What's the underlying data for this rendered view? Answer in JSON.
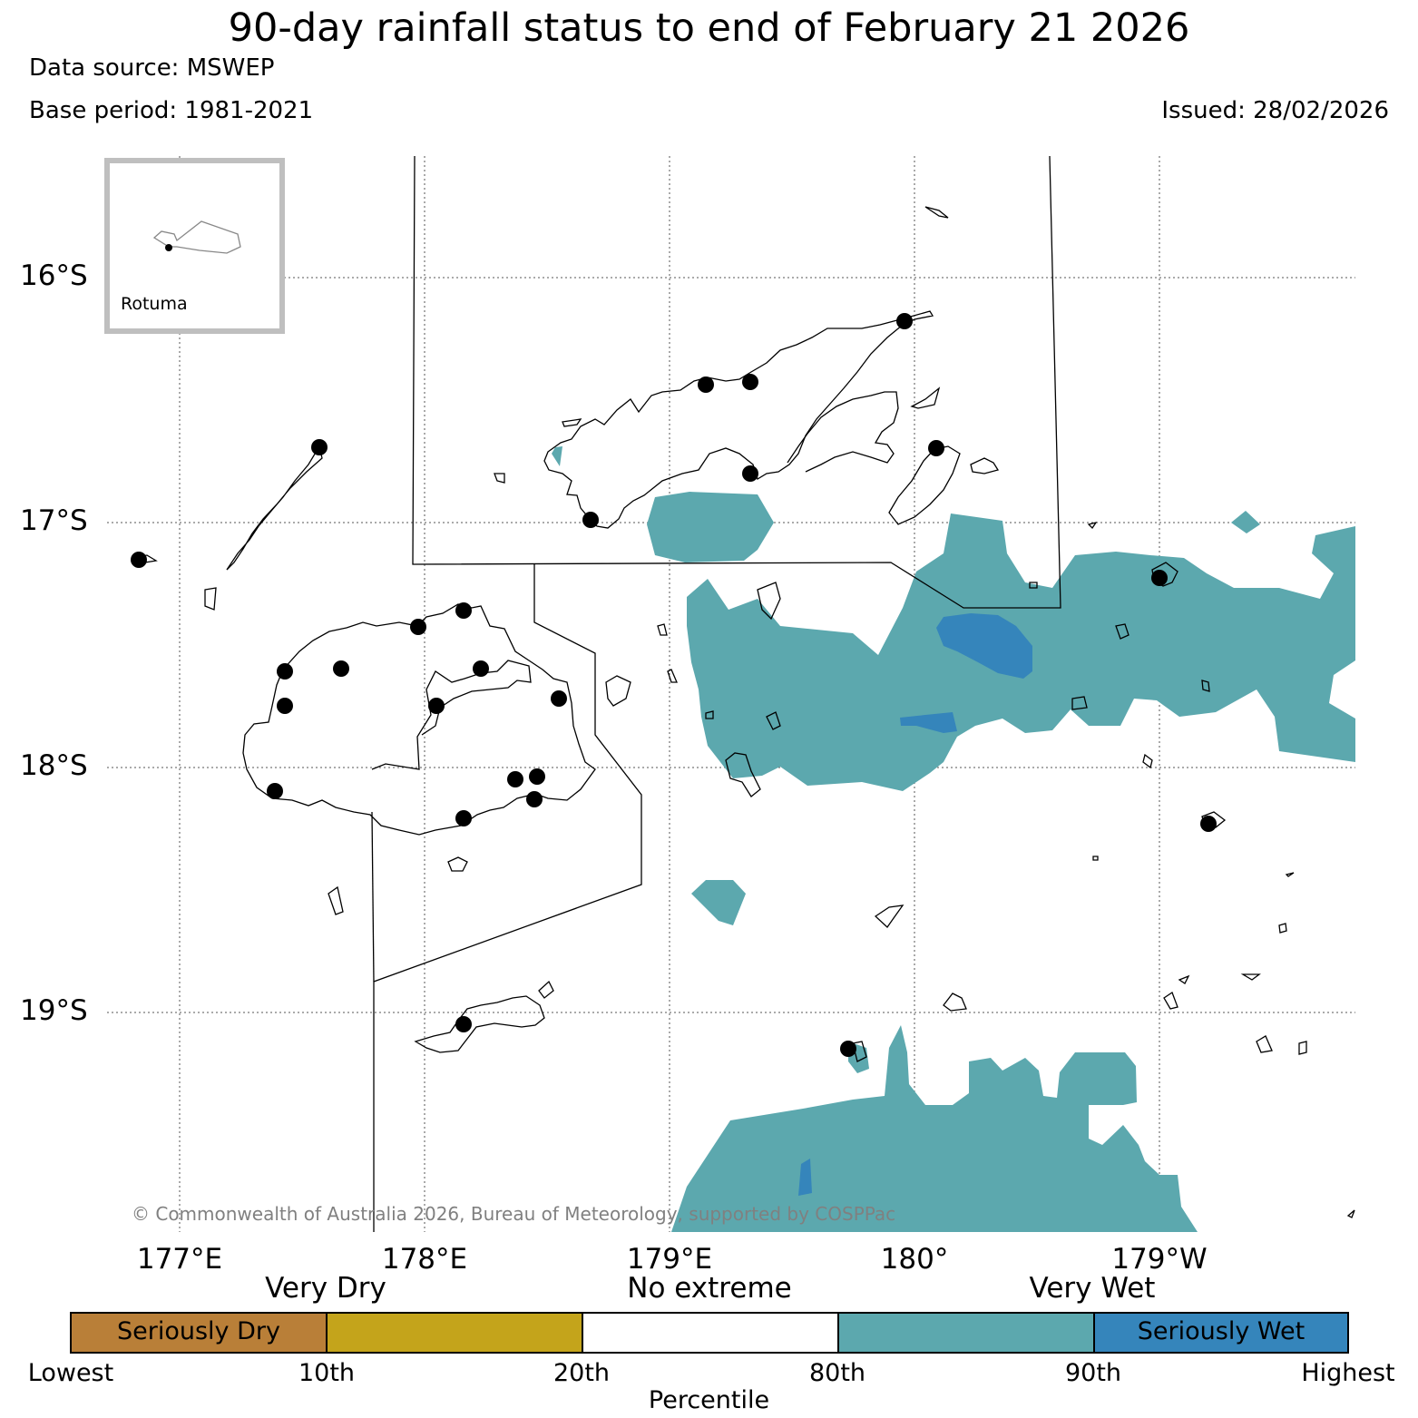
{
  "header": {
    "title": "90-day rainfall status to end of February 21 2026",
    "data_source": "Data source: MSWEP",
    "base_period": "Base period: 1981-2021",
    "issued": "Issued: 28/02/2026"
  },
  "axes": {
    "latitudes": [
      "16°S",
      "17°S",
      "18°S",
      "19°S"
    ],
    "longitudes": [
      "177°E",
      "178°E",
      "179°E",
      "180°",
      "179°W"
    ]
  },
  "inset": {
    "label": "Rotuma"
  },
  "copyright": "© Commonwealth of Australia 2026, Bureau of Meteorology, supported by COSPPac",
  "legend": {
    "categories": [
      "Very Dry",
      "No extreme",
      "Very Wet"
    ],
    "segments": [
      {
        "label": "Seriously Dry",
        "color": "#b97f38"
      },
      {
        "label": "",
        "color": "#c4a41b"
      },
      {
        "label": "",
        "color": "#ffffff"
      },
      {
        "label": "",
        "color": "#5ca8ae"
      },
      {
        "label": "Seriously Wet",
        "color": "#3585bb"
      }
    ],
    "ticks": [
      "Lowest",
      "10th",
      "20th",
      "80th",
      "90th",
      "Highest"
    ],
    "axis_title": "Percentile"
  },
  "colors": {
    "very_wet": "#5ca8ae",
    "seriously_wet": "#3585bb",
    "station": "#000000"
  }
}
